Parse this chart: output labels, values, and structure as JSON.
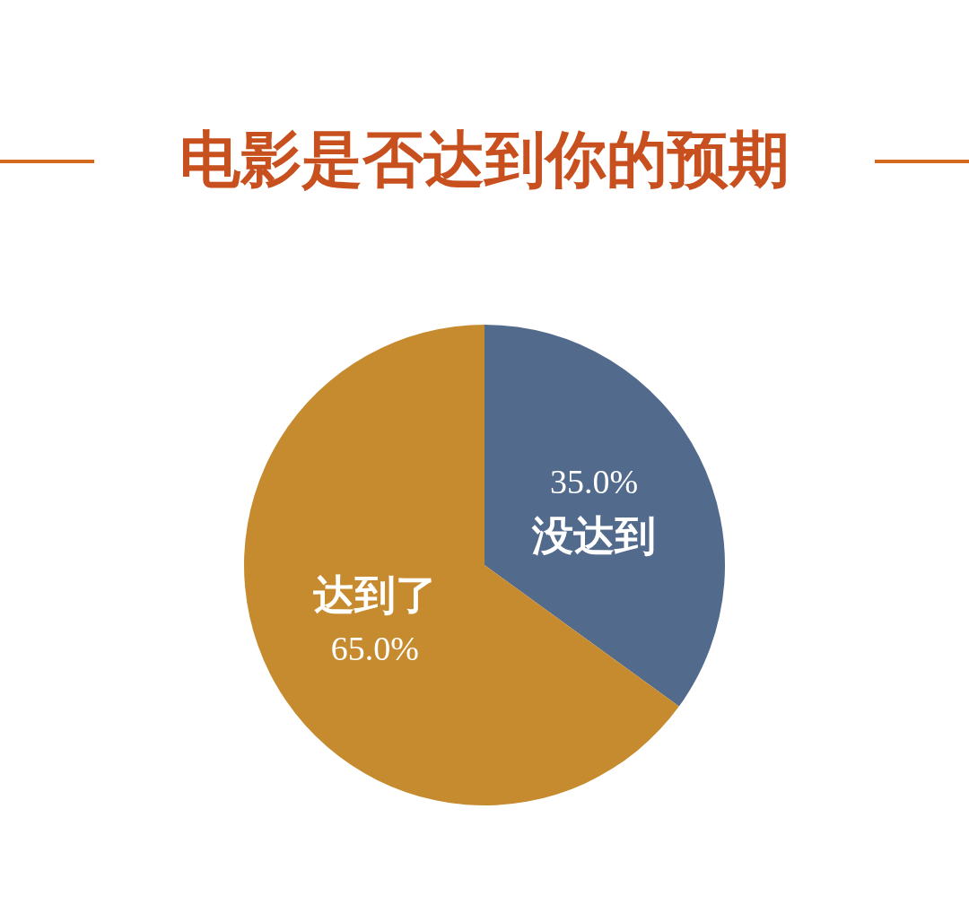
{
  "chart_data": {
    "type": "pie",
    "title": "电影是否达到你的预期",
    "categories": [
      "没达到",
      "达到了"
    ],
    "values": [
      35.0,
      65.0
    ],
    "value_labels": [
      "35.0%",
      "65.0%"
    ],
    "colors": [
      "#526a8c",
      "#c68b2e"
    ]
  }
}
